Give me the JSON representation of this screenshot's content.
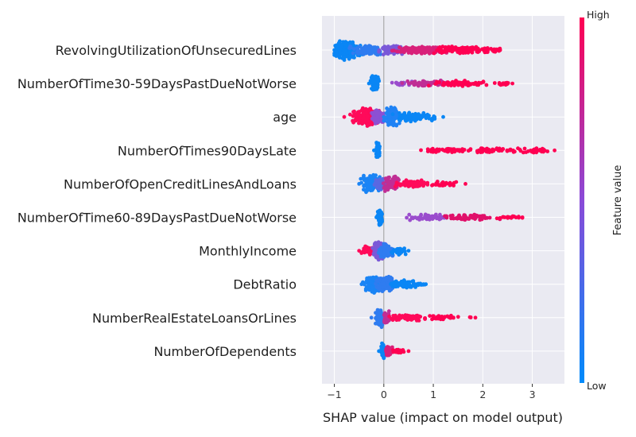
{
  "chart_data": {
    "type": "scatter",
    "subtype": "shap-beeswarm-summary",
    "title": "",
    "xlabel": "SHAP value (impact on model output)",
    "xlim": [
      -1.25,
      3.65
    ],
    "xticks": [
      -1,
      0,
      1,
      2,
      3
    ],
    "grid": true,
    "zero_line": 0,
    "colorbar": {
      "label": "Feature value",
      "high_label": "High",
      "low_label": "Low",
      "low_color": "#008bfb",
      "high_color": "#ff0052"
    },
    "features": [
      {
        "name": "RevolvingUtilizationOfUnsecuredLines",
        "min": -1.0,
        "max": 2.35,
        "clusters": [
          {
            "center": -0.75,
            "spread": 0.22,
            "width": 13,
            "color": "#0a86f5",
            "count": 220
          },
          {
            "center": -0.3,
            "spread": 0.25,
            "width": 7,
            "color": "#2f7cf0",
            "count": 110
          },
          {
            "center": 0.15,
            "spread": 0.2,
            "width": 6,
            "color": "#7a58d8",
            "count": 60
          },
          {
            "center": 0.7,
            "spread": 0.45,
            "width": 5,
            "color": "#d8207a",
            "count": 140
          },
          {
            "center": 1.55,
            "spread": 0.4,
            "width": 5,
            "color": "#ff0052",
            "count": 120
          },
          {
            "center": 2.15,
            "spread": 0.15,
            "width": 3,
            "color": "#ff0052",
            "count": 25
          }
        ]
      },
      {
        "name": "NumberOfTime30-59DaysPastDueNotWorse",
        "min": -0.3,
        "max": 2.6,
        "clusters": [
          {
            "center": -0.18,
            "spread": 0.06,
            "width": 11,
            "color": "#0a86f5",
            "count": 120
          },
          {
            "center": 0.35,
            "spread": 0.15,
            "width": 3,
            "color": "#9a4ccd",
            "count": 20
          },
          {
            "center": 0.9,
            "spread": 0.35,
            "width": 4,
            "color": "#c02e95",
            "count": 70
          },
          {
            "center": 1.6,
            "spread": 0.45,
            "width": 4,
            "color": "#ff0052",
            "count": 70
          },
          {
            "center": 2.4,
            "spread": 0.15,
            "width": 2,
            "color": "#ff0052",
            "count": 15
          }
        ]
      },
      {
        "name": "age",
        "min": -0.8,
        "max": 1.2,
        "clusters": [
          {
            "center": -0.35,
            "spread": 0.2,
            "width": 12,
            "color": "#ff0a5a",
            "count": 150
          },
          {
            "center": -0.1,
            "spread": 0.12,
            "width": 10,
            "color": "#8c50d4",
            "count": 80
          },
          {
            "center": 0.15,
            "spread": 0.1,
            "width": 13,
            "color": "#1f82f5",
            "count": 110
          },
          {
            "center": 0.55,
            "spread": 0.25,
            "width": 6,
            "color": "#0a86f5",
            "count": 80
          },
          {
            "center": 0.95,
            "spread": 0.15,
            "width": 3,
            "color": "#0a86f5",
            "count": 15
          }
        ]
      },
      {
        "name": "NumberOfTimes90DaysLate",
        "min": -0.2,
        "max": 3.45,
        "clusters": [
          {
            "center": -0.12,
            "spread": 0.03,
            "width": 10,
            "color": "#0a86f5",
            "count": 90
          },
          {
            "center": 1.3,
            "spread": 0.35,
            "width": 3,
            "color": "#ff0052",
            "count": 50
          },
          {
            "center": 2.2,
            "spread": 0.45,
            "width": 3,
            "color": "#ff0052",
            "count": 70
          },
          {
            "center": 3.1,
            "spread": 0.2,
            "width": 3,
            "color": "#ff0052",
            "count": 30
          }
        ]
      },
      {
        "name": "NumberOfOpenCreditLinesAndLoans",
        "min": -0.5,
        "max": 1.65,
        "clusters": [
          {
            "center": -0.25,
            "spread": 0.15,
            "width": 12,
            "color": "#1a84f5",
            "count": 120
          },
          {
            "center": -0.05,
            "spread": 0.1,
            "width": 8,
            "color": "#5a68e2",
            "count": 50
          },
          {
            "center": 0.15,
            "spread": 0.12,
            "width": 11,
            "color": "#c02e95",
            "count": 90
          },
          {
            "center": 0.55,
            "spread": 0.25,
            "width": 6,
            "color": "#ff0a5a",
            "count": 80
          },
          {
            "center": 1.2,
            "spread": 0.25,
            "width": 3,
            "color": "#ff0052",
            "count": 30
          }
        ]
      },
      {
        "name": "NumberOfTime60-89DaysPastDueNotWorse",
        "min": -0.15,
        "max": 2.8,
        "clusters": [
          {
            "center": -0.08,
            "spread": 0.03,
            "width": 10,
            "color": "#0a86f5",
            "count": 90
          },
          {
            "center": 0.9,
            "spread": 0.35,
            "width": 4,
            "color": "#9a4ccd",
            "count": 60
          },
          {
            "center": 1.7,
            "spread": 0.4,
            "width": 4,
            "color": "#e0106a",
            "count": 70
          },
          {
            "center": 2.55,
            "spread": 0.2,
            "width": 2,
            "color": "#ff0052",
            "count": 20
          }
        ]
      },
      {
        "name": "MonthlyIncome",
        "min": -0.5,
        "max": 0.5,
        "clusters": [
          {
            "center": -0.3,
            "spread": 0.15,
            "width": 6,
            "color": "#ff0a5a",
            "count": 40
          },
          {
            "center": -0.1,
            "spread": 0.08,
            "width": 12,
            "color": "#7a58d8",
            "count": 120
          },
          {
            "center": 0.05,
            "spread": 0.12,
            "width": 10,
            "color": "#2f7cf0",
            "count": 100
          },
          {
            "center": 0.3,
            "spread": 0.12,
            "width": 5,
            "color": "#0a86f5",
            "count": 40
          }
        ]
      },
      {
        "name": "DebtRatio",
        "min": -0.45,
        "max": 0.85,
        "clusters": [
          {
            "center": -0.2,
            "spread": 0.15,
            "width": 11,
            "color": "#1a84f5",
            "count": 120
          },
          {
            "center": 0.05,
            "spread": 0.15,
            "width": 10,
            "color": "#2f7cf0",
            "count": 120
          },
          {
            "center": 0.4,
            "spread": 0.2,
            "width": 6,
            "color": "#0a86f5",
            "count": 70
          },
          {
            "center": 0.75,
            "spread": 0.08,
            "width": 2,
            "color": "#0a86f5",
            "count": 10
          }
        ]
      },
      {
        "name": "NumberRealEstateLoansOrLines",
        "min": -0.25,
        "max": 1.85,
        "clusters": [
          {
            "center": -0.08,
            "spread": 0.06,
            "width": 12,
            "color": "#2f7cf0",
            "count": 110
          },
          {
            "center": 0.05,
            "spread": 0.05,
            "width": 9,
            "color": "#c02e95",
            "count": 60
          },
          {
            "center": 0.5,
            "spread": 0.3,
            "width": 4,
            "color": "#ff0a5a",
            "count": 80
          },
          {
            "center": 1.2,
            "spread": 0.25,
            "width": 3,
            "color": "#ff0052",
            "count": 35
          },
          {
            "center": 1.75,
            "spread": 0.05,
            "width": 1,
            "color": "#ff0052",
            "count": 3
          }
        ]
      },
      {
        "name": "NumberOfDependents",
        "min": -0.1,
        "max": 0.5,
        "clusters": [
          {
            "center": -0.02,
            "spread": 0.03,
            "width": 10,
            "color": "#0a86f5",
            "count": 70
          },
          {
            "center": 0.1,
            "spread": 0.06,
            "width": 6,
            "color": "#d8207a",
            "count": 40
          },
          {
            "center": 0.3,
            "spread": 0.1,
            "width": 3,
            "color": "#ff0052",
            "count": 30
          }
        ]
      }
    ]
  }
}
